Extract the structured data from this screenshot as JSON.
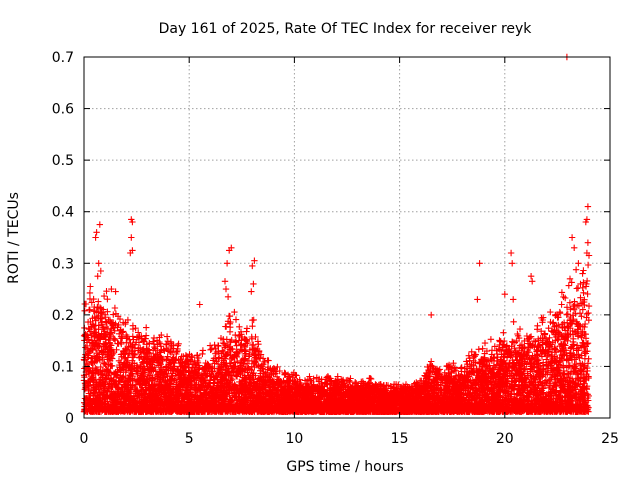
{
  "chart_data": {
    "type": "scatter",
    "title": "Day 161 of 2025, Rate Of TEC Index for receiver reyk",
    "xlabel": "GPS time / hours",
    "ylabel": "ROTI / TECUs",
    "xlim": [
      0,
      25
    ],
    "ylim": [
      0,
      0.7
    ],
    "x_ticks": [
      "0",
      "5",
      "10",
      "15",
      "20",
      "25"
    ],
    "y_ticks": [
      "0",
      "0.1",
      "0.2",
      "0.3",
      "0.4",
      "0.5",
      "0.6",
      "0.7"
    ],
    "grid": true,
    "legend": "none",
    "marker": "plus",
    "color": "#ff0000",
    "envelope": {
      "description_hours": [
        0,
        0.5,
        1,
        1.5,
        2,
        2.5,
        3,
        3.5,
        4,
        4.5,
        5,
        5.5,
        6,
        6.5,
        7,
        7.5,
        8,
        8.5,
        9,
        9.5,
        10,
        10.5,
        11,
        11.5,
        12,
        12.5,
        13,
        13.5,
        14,
        14.5,
        15,
        15.5,
        16,
        16.5,
        17,
        17.5,
        18,
        18.5,
        19,
        19.5,
        20,
        20.5,
        21,
        21.5,
        22,
        22.5,
        23,
        23.5,
        24
      ],
      "typical_max_roti": [
        0.22,
        0.2,
        0.2,
        0.18,
        0.16,
        0.15,
        0.14,
        0.13,
        0.13,
        0.12,
        0.1,
        0.1,
        0.11,
        0.12,
        0.18,
        0.14,
        0.16,
        0.1,
        0.08,
        0.07,
        0.07,
        0.06,
        0.06,
        0.06,
        0.06,
        0.06,
        0.05,
        0.06,
        0.05,
        0.05,
        0.05,
        0.05,
        0.06,
        0.09,
        0.08,
        0.08,
        0.09,
        0.11,
        0.12,
        0.12,
        0.13,
        0.15,
        0.14,
        0.16,
        0.17,
        0.19,
        0.22,
        0.25,
        0.25
      ]
    },
    "outliers": [
      {
        "x": 0.55,
        "y": 0.35
      },
      {
        "x": 0.6,
        "y": 0.36
      },
      {
        "x": 0.75,
        "y": 0.375
      },
      {
        "x": 0.7,
        "y": 0.3
      },
      {
        "x": 0.8,
        "y": 0.285
      },
      {
        "x": 0.65,
        "y": 0.275
      },
      {
        "x": 2.25,
        "y": 0.385
      },
      {
        "x": 2.3,
        "y": 0.38
      },
      {
        "x": 2.25,
        "y": 0.35
      },
      {
        "x": 2.2,
        "y": 0.32
      },
      {
        "x": 2.3,
        "y": 0.325
      },
      {
        "x": 6.9,
        "y": 0.325
      },
      {
        "x": 7.0,
        "y": 0.33
      },
      {
        "x": 6.8,
        "y": 0.3
      },
      {
        "x": 6.7,
        "y": 0.265
      },
      {
        "x": 6.75,
        "y": 0.25
      },
      {
        "x": 6.85,
        "y": 0.235
      },
      {
        "x": 8.1,
        "y": 0.305
      },
      {
        "x": 8.0,
        "y": 0.295
      },
      {
        "x": 8.05,
        "y": 0.26
      },
      {
        "x": 7.95,
        "y": 0.245
      },
      {
        "x": 5.5,
        "y": 0.22
      },
      {
        "x": 1.3,
        "y": 0.25
      },
      {
        "x": 1.5,
        "y": 0.245
      },
      {
        "x": 0.3,
        "y": 0.255
      },
      {
        "x": 18.8,
        "y": 0.3
      },
      {
        "x": 18.7,
        "y": 0.23
      },
      {
        "x": 16.5,
        "y": 0.2
      },
      {
        "x": 20.3,
        "y": 0.32
      },
      {
        "x": 20.35,
        "y": 0.3
      },
      {
        "x": 20.0,
        "y": 0.24
      },
      {
        "x": 20.4,
        "y": 0.23
      },
      {
        "x": 21.25,
        "y": 0.275
      },
      {
        "x": 21.3,
        "y": 0.265
      },
      {
        "x": 22.95,
        "y": 0.7
      },
      {
        "x": 23.95,
        "y": 0.41
      },
      {
        "x": 23.9,
        "y": 0.385
      },
      {
        "x": 23.85,
        "y": 0.38
      },
      {
        "x": 23.95,
        "y": 0.34
      },
      {
        "x": 23.9,
        "y": 0.32
      },
      {
        "x": 24.0,
        "y": 0.315
      },
      {
        "x": 23.2,
        "y": 0.35
      },
      {
        "x": 23.3,
        "y": 0.33
      },
      {
        "x": 23.5,
        "y": 0.3
      },
      {
        "x": 23.7,
        "y": 0.28
      },
      {
        "x": 23.1,
        "y": 0.27
      },
      {
        "x": 23.6,
        "y": 0.26
      },
      {
        "x": 22.7,
        "y": 0.22
      },
      {
        "x": 22.4,
        "y": 0.2
      },
      {
        "x": 21.8,
        "y": 0.19
      }
    ]
  }
}
